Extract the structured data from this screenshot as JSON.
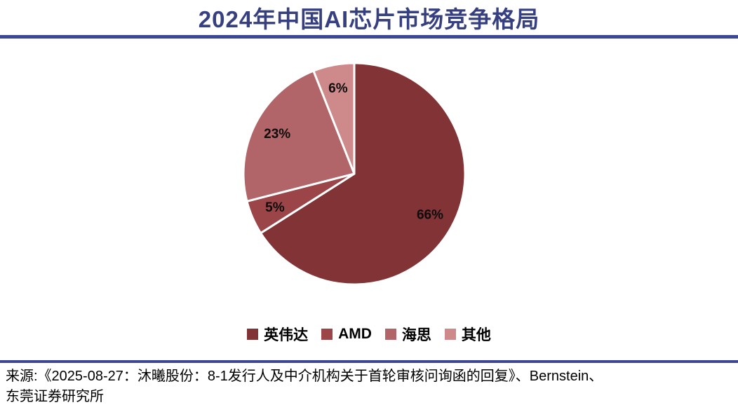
{
  "title": "2024年中国AI芯片市场竞争格局",
  "colors": {
    "title_text": "#363F80",
    "divider": "#3C4693",
    "pie_label_text": "#0d0d0d",
    "legend_text": "#000000"
  },
  "chart_data": {
    "type": "pie",
    "title": "2024年中国AI芯片市场竞争格局",
    "unit": "%",
    "start_angle_deg": 0,
    "direction": "clockwise",
    "slice_border_color": "#FFFFFF",
    "legend_position": "bottom",
    "segments": [
      {
        "name": "nvidia",
        "label": "英伟达",
        "value": 66,
        "value_label": "66%",
        "color": "#823335"
      },
      {
        "name": "amd",
        "label": "AMD",
        "value": 5,
        "value_label": "5%",
        "color": "#9B4548"
      },
      {
        "name": "hisilicon",
        "label": "海思",
        "value": 23,
        "value_label": "23%",
        "color": "#B16568"
      },
      {
        "name": "other",
        "label": "其他",
        "value": 6,
        "value_label": "6%",
        "color": "#CE8A8B"
      }
    ]
  },
  "source": {
    "line1": "来源:《2025-08-27：沐曦股份：8-1发行人及中介机构关于首轮审核问询函的回复》、Bernstein、",
    "line2": "东莞证券研究所"
  }
}
